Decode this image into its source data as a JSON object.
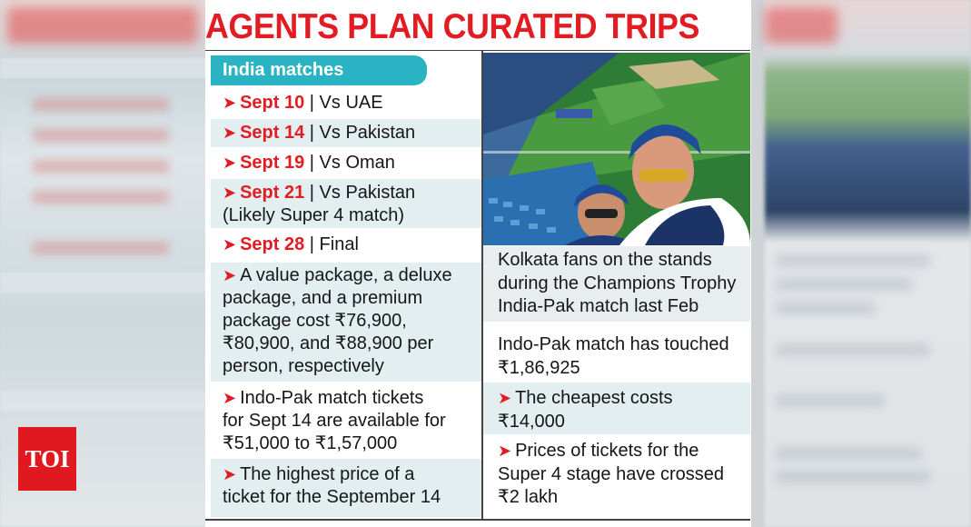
{
  "headline": "AGENTS PLAN CURATED TRIPS",
  "logo": "TOI",
  "left": {
    "header": "India matches",
    "matches": [
      {
        "date": "Sept 10",
        "text": " | Vs UAE"
      },
      {
        "date": "Sept 14",
        "text": " | Vs Pakistan"
      },
      {
        "date": "Sept 19",
        "text": " | Vs Oman"
      },
      {
        "date": "Sept 21",
        "text": " | Vs Pakistan",
        "note": "(Likely Super 4 match)"
      },
      {
        "date": "Sept 28",
        "text": " | Final"
      }
    ],
    "points": [
      {
        "lines": [
          "A value package, a deluxe",
          "package, and a premium",
          "package cost ₹76,900,",
          "₹80,900, and ₹88,900 per",
          "person, respectively"
        ]
      },
      {
        "lines": [
          "Indo-Pak match tickets",
          "for Sept 14 are available for",
          "₹51,000 to ₹1,57,000"
        ]
      },
      {
        "lines": [
          "The highest price of a",
          "ticket for the September 14"
        ]
      }
    ]
  },
  "right": {
    "caption": [
      "Kolkata fans on the stands",
      "during the Champions Trophy",
      "India-Pak match last Feb"
    ],
    "intro": [
      "Indo-Pak match has touched",
      "₹1,86,925"
    ],
    "points": [
      {
        "lines": [
          "The cheapest costs",
          "₹14,000"
        ]
      },
      {
        "lines": [
          "Prices of tickets for the",
          "Super 4 stage have crossed",
          "₹2 lakh"
        ]
      }
    ]
  },
  "arrow_glyph": "➤",
  "colors": {
    "accent_red": "#e21c23",
    "header_teal": "#2ab3c3",
    "row_shade": "#e2eef0"
  }
}
